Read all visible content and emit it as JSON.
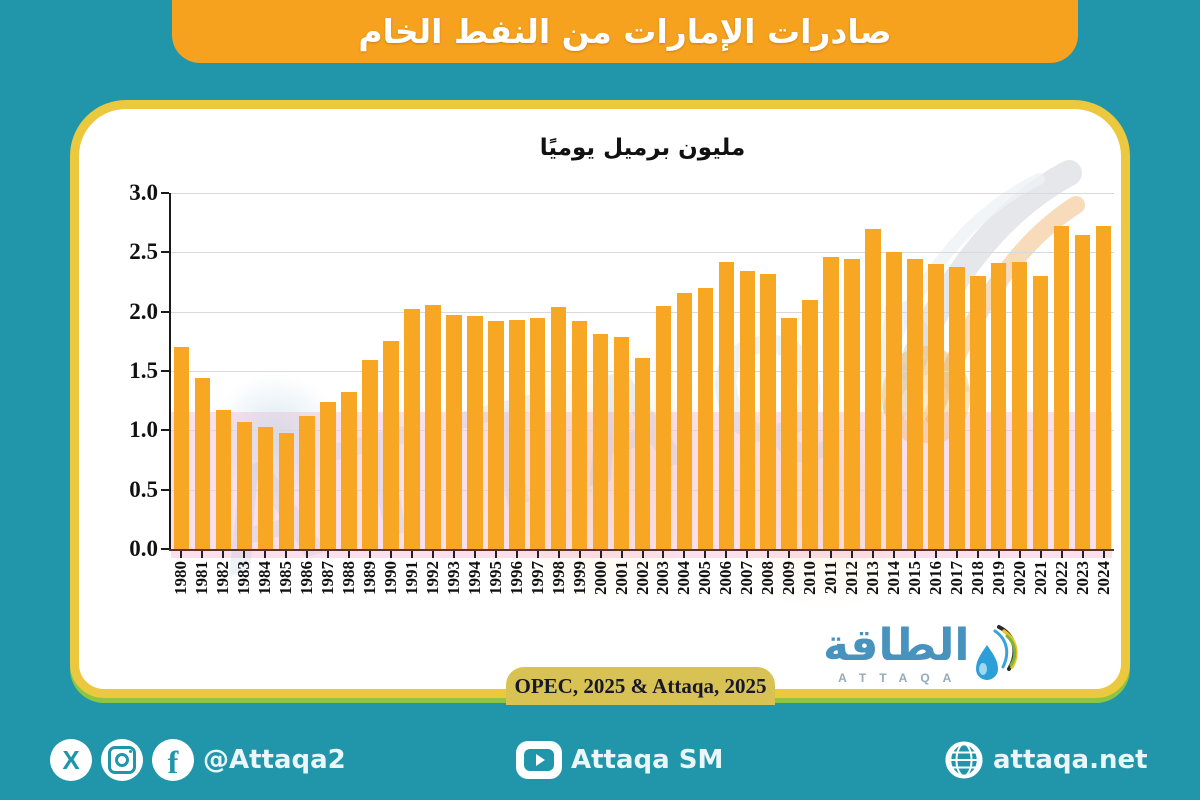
{
  "banner": {
    "title": "صادرات الإمارات من النفط الخام"
  },
  "chart_data": {
    "type": "bar",
    "title": "مليون برميل يوميًا",
    "ylabel": "مليون برميل يوميًا",
    "xlabel": "",
    "categories": [
      "1980",
      "1981",
      "1982",
      "1983",
      "1984",
      "1985",
      "1986",
      "1987",
      "1988",
      "1989",
      "1990",
      "1991",
      "1992",
      "1993",
      "1994",
      "1995",
      "1996",
      "1997",
      "1998",
      "1999",
      "2000",
      "2001",
      "2002",
      "2003",
      "2004",
      "2005",
      "2006",
      "2007",
      "2008",
      "2009",
      "2010",
      "2011",
      "2012",
      "2013",
      "2014",
      "2015",
      "2016",
      "2017",
      "2018",
      "2019",
      "2020",
      "2021",
      "2022",
      "2023",
      "2024"
    ],
    "values": [
      1.7,
      1.44,
      1.17,
      1.07,
      1.03,
      0.98,
      1.12,
      1.24,
      1.32,
      1.59,
      1.75,
      2.02,
      2.06,
      1.97,
      1.96,
      1.92,
      1.93,
      1.95,
      2.04,
      1.92,
      1.81,
      1.79,
      1.61,
      2.05,
      2.16,
      2.2,
      2.42,
      2.34,
      2.32,
      1.95,
      2.1,
      2.46,
      2.44,
      2.7,
      2.5,
      2.44,
      2.4,
      2.38,
      2.3,
      2.41,
      2.42,
      2.3,
      2.72,
      2.65,
      2.72
    ],
    "ylim": [
      0,
      3
    ],
    "ytick_labels": [
      "0.0",
      "0.5",
      "1.0",
      "1.5",
      "2.0",
      "2.5",
      "3.0"
    ],
    "grid": true,
    "legend": false,
    "bar_color": "#F7A723"
  },
  "source_badge": {
    "label": "OPEC, 2025 & Attaqa, 2025"
  },
  "logo": {
    "arabic": "الطاقة",
    "latin": "ATTAQA"
  },
  "watermark": {
    "text": "ATTAQA"
  },
  "footer": {
    "handle": "@Attaqa2",
    "youtube_label": "Attaqa SM",
    "website": "attaqa.net",
    "x_glyph": "X",
    "facebook_glyph": "f"
  },
  "colors": {
    "background": "#2196AB",
    "banner": "#F6A21E",
    "bars": "#F7A723",
    "card_border": "#EBC83E",
    "green_accent": "#8CC53F",
    "badge": "#D8C253",
    "logo_blue": "#4793BD",
    "watermark_pink": "#FADBE9"
  }
}
